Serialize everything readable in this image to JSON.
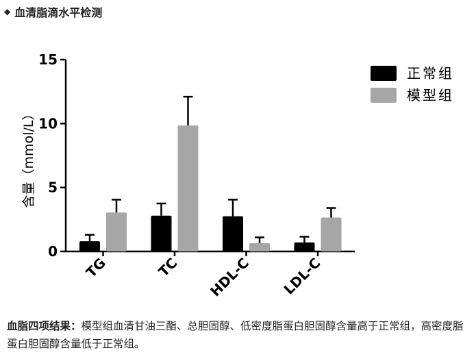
{
  "heading": {
    "bullet": "◆",
    "title": "血清脂滴水平检测"
  },
  "chart_data": {
    "type": "bar",
    "title": "",
    "xlabel": "",
    "ylabel": "含量（mmol/L）",
    "ylim": [
      0,
      15
    ],
    "yticks": [
      "0",
      "5",
      "10",
      "15"
    ],
    "categories": [
      "TG",
      "TC",
      "HDL-C",
      "LDL-C"
    ],
    "series": [
      {
        "name": "正常组",
        "color": "#000000",
        "values": [
          0.8,
          2.8,
          2.75,
          0.7
        ],
        "errors": [
          0.5,
          0.95,
          1.3,
          0.45
        ]
      },
      {
        "name": "模型组",
        "color": "#a6a6a6",
        "values": [
          3.05,
          9.85,
          0.65,
          2.65
        ],
        "errors": [
          1.0,
          2.25,
          0.45,
          0.75
        ]
      }
    ],
    "legend_position": "top-right",
    "grid": false
  },
  "caption": {
    "label": "血脂四项结果：",
    "text": "模型组血清甘油三酯、总胆固醇、低密度脂蛋白胆固醇含量高于正常组，高密度脂蛋白胆固醇含量低于正常组。"
  }
}
